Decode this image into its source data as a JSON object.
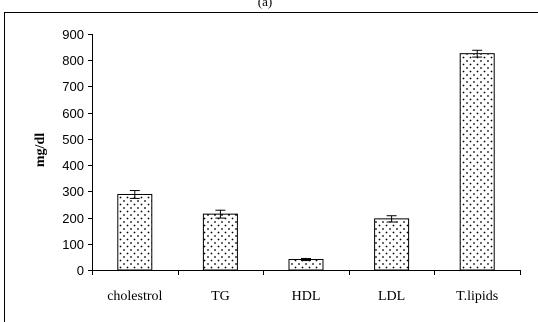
{
  "panel_label": "(a)",
  "chart_data": {
    "type": "bar",
    "title": "",
    "xlabel": "",
    "ylabel": "mg/dl",
    "categories": [
      "cholestrol",
      "TG",
      "HDL",
      "LDL",
      "T.lipids"
    ],
    "values": [
      288,
      213,
      40,
      195,
      825
    ],
    "errors": [
      15,
      15,
      4,
      12,
      13
    ],
    "ylim": [
      0,
      900
    ],
    "yticks": [
      "0",
      "100",
      "200",
      "300",
      "400",
      "500",
      "600",
      "700",
      "800",
      "900"
    ],
    "grid": false,
    "legend": "none",
    "bar_fill": "dotted white",
    "colors": {
      "bar_stroke": "#000000",
      "dot": "#000000",
      "background": "#ffffff"
    }
  }
}
